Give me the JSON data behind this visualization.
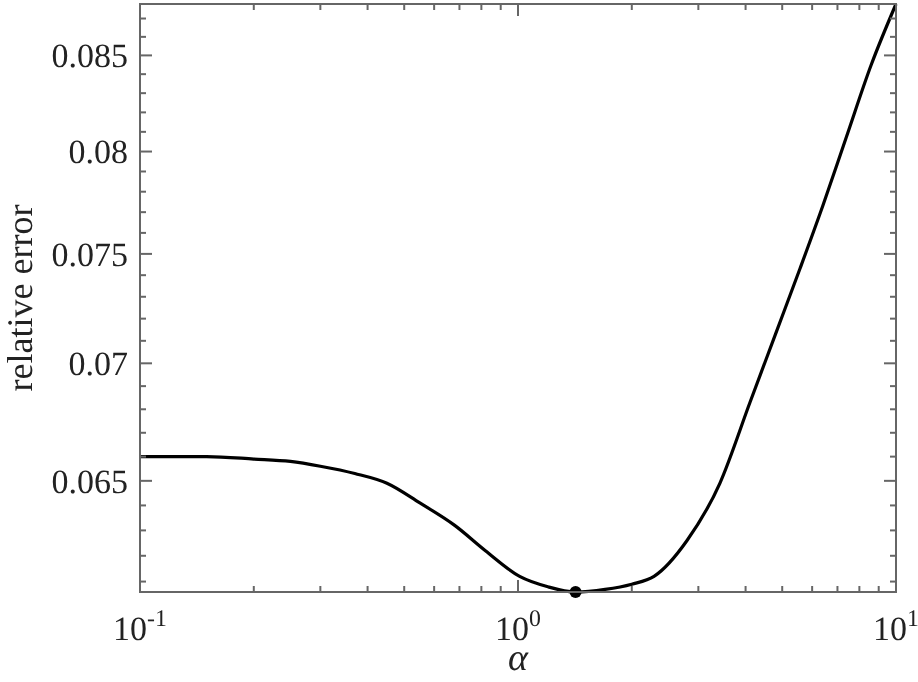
{
  "chart_data": {
    "type": "line",
    "xlabel": "α",
    "ylabel": "relative error",
    "log": "xy",
    "xlim": [
      0.1,
      10
    ],
    "ylim": [
      0.0606,
      0.0878
    ],
    "xticks": [
      {
        "value": 0.1,
        "label": "10$^{-1}$"
      },
      {
        "value": 0.2,
        "label": null
      },
      {
        "value": 0.3,
        "label": null
      },
      {
        "value": 0.4,
        "label": null
      },
      {
        "value": 0.5,
        "label": null
      },
      {
        "value": 0.6,
        "label": null
      },
      {
        "value": 0.7,
        "label": null
      },
      {
        "value": 0.8,
        "label": null
      },
      {
        "value": 0.9,
        "label": null
      },
      {
        "value": 1,
        "label": "10$^{0}$"
      },
      {
        "value": 2,
        "label": null
      },
      {
        "value": 3,
        "label": null
      },
      {
        "value": 4,
        "label": null
      },
      {
        "value": 5,
        "label": null
      },
      {
        "value": 6,
        "label": null
      },
      {
        "value": 7,
        "label": null
      },
      {
        "value": 8,
        "label": null
      },
      {
        "value": 9,
        "label": null
      },
      {
        "value": 10,
        "label": "10$^{1}$"
      }
    ],
    "yticks": [
      {
        "value": 0.061,
        "label": null
      },
      {
        "value": 0.062,
        "label": null
      },
      {
        "value": 0.063,
        "label": null
      },
      {
        "value": 0.064,
        "label": null
      },
      0.065,
      {
        "value": 0.066,
        "label": null
      },
      {
        "value": 0.067,
        "label": null
      },
      {
        "value": 0.068,
        "label": null
      },
      {
        "value": 0.069,
        "label": null
      },
      0.07,
      {
        "value": 0.071,
        "label": null
      },
      {
        "value": 0.072,
        "label": null
      },
      {
        "value": 0.073,
        "label": null
      },
      {
        "value": 0.074,
        "label": null
      },
      0.075,
      {
        "value": 0.076,
        "label": null
      },
      {
        "value": 0.077,
        "label": null
      },
      {
        "value": 0.078,
        "label": null
      },
      {
        "value": 0.079,
        "label": null
      },
      0.08,
      {
        "value": 0.081,
        "label": null
      },
      {
        "value": 0.082,
        "label": null
      },
      {
        "value": 0.083,
        "label": null
      },
      {
        "value": 0.084,
        "label": null
      },
      0.085,
      {
        "value": 0.086,
        "label": null
      },
      {
        "value": 0.087,
        "label": null
      }
    ],
    "grid": false,
    "series": [
      {
        "color": "#000000",
        "marker": "none",
        "line_style": "solid",
        "x": [
          0.1,
          0.15,
          0.2,
          0.25,
          0.3,
          0.37,
          0.45,
          0.55,
          0.68,
          0.82,
          1.01,
          1.2,
          1.42,
          1.7,
          2.0,
          2.29,
          2.8,
          3.42,
          4.11,
          4.8,
          5.57,
          6.4,
          7.38,
          8.6,
          10
        ],
        "values": [
          0.066,
          0.066,
          0.0659,
          0.0658,
          0.0656,
          0.0653,
          0.0649,
          0.0641,
          0.0632,
          0.0622,
          0.0612,
          0.0608,
          0.0606,
          0.0607,
          0.0609,
          0.0612,
          0.0626,
          0.0649,
          0.0683,
          0.0713,
          0.0743,
          0.0773,
          0.0807,
          0.0845,
          0.0878
        ]
      },
      {
        "type": "scatter",
        "color": "#000000",
        "marker": "circle",
        "x": [
          1.42
        ],
        "values": [
          0.0606
        ]
      }
    ]
  }
}
